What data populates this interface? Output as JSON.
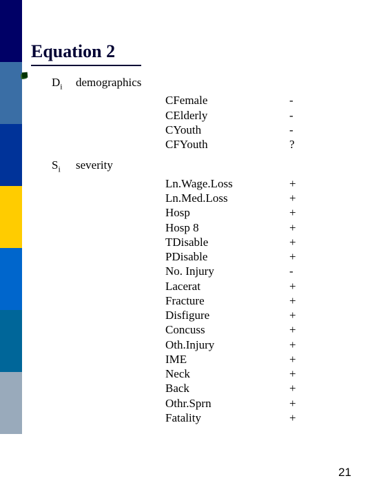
{
  "sidebar_colors": [
    "#000066",
    "#3a6ea5",
    "#003399",
    "#ffcc00",
    "#0066cc",
    "#006699",
    "#99aabb",
    "#ffffff"
  ],
  "title": "Equation 2",
  "page_number": "21",
  "bullet_color": "#003300",
  "groups": [
    {
      "symbol_main": "D",
      "symbol_sub": "i",
      "label": "demographics",
      "items": [
        {
          "name": "CFemale",
          "sign": "-"
        },
        {
          "name": "CElderly",
          "sign": "-"
        },
        {
          "name": "CYouth",
          "sign": "-"
        },
        {
          "name": "CFYouth",
          "sign": "?"
        }
      ]
    },
    {
      "symbol_main": "S",
      "symbol_sub": "i",
      "label": "severity",
      "items": [
        {
          "name": "Ln.Wage.Loss",
          "sign": "+"
        },
        {
          "name": "Ln.Med.Loss",
          "sign": "+"
        },
        {
          "name": "Hosp",
          "sign": "+"
        },
        {
          "name": "Hosp 8",
          "sign": "+"
        },
        {
          "name": "TDisable",
          "sign": "+"
        },
        {
          "name": "PDisable",
          "sign": "+"
        },
        {
          "name": "No. Injury",
          "sign": "-"
        },
        {
          "name": "Lacerat",
          "sign": "+"
        },
        {
          "name": "Fracture",
          "sign": "+"
        },
        {
          "name": "Disfigure",
          "sign": "+"
        },
        {
          "name": "Concuss",
          "sign": "+"
        },
        {
          "name": "Oth.Injury",
          "sign": "+"
        },
        {
          "name": "IME",
          "sign": "+"
        },
        {
          "name": "Neck",
          "sign": "+"
        },
        {
          "name": "Back",
          "sign": "+"
        },
        {
          "name": "Othr.Sprn",
          "sign": "+"
        },
        {
          "name": "Fatality",
          "sign": "+"
        }
      ]
    }
  ]
}
